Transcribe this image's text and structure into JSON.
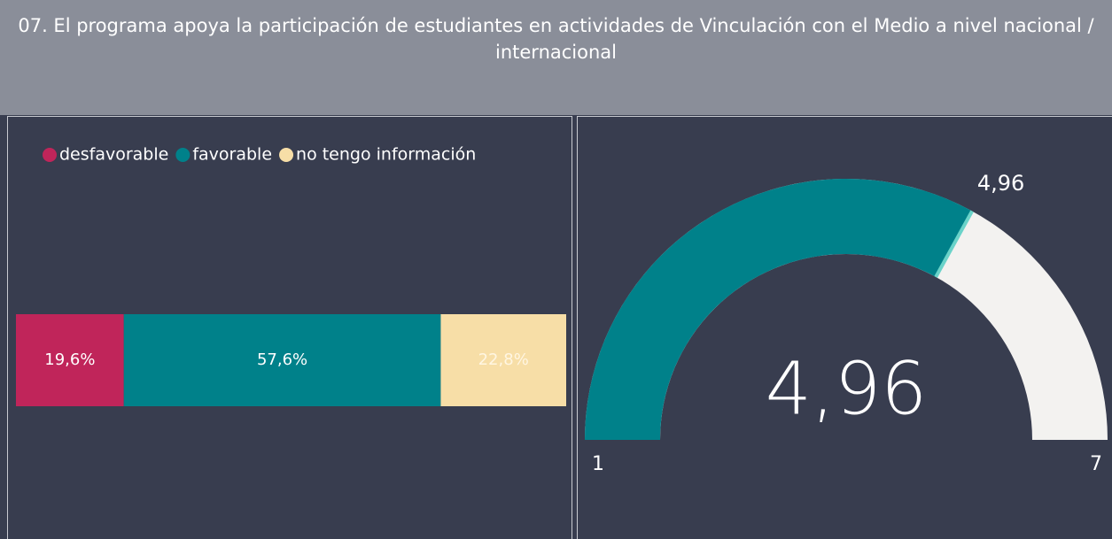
{
  "title": "07. El programa apoya la participación de estudiantes en actividades de Vinculación con el Medio a nivel nacional / internacional",
  "chart_data": [
    {
      "type": "stacked-bar",
      "categories": [
        null
      ],
      "series": [
        {
          "name": "desfavorable",
          "color": "#c0255a",
          "values": [
            19.6
          ],
          "value_labels": [
            "19,6%"
          ]
        },
        {
          "name": "favorable",
          "color": "#00818a",
          "values": [
            57.6
          ],
          "value_labels": [
            "57,6%"
          ]
        },
        {
          "name": "no tengo información",
          "color": "#f7dea7",
          "values": [
            22.8
          ],
          "value_labels": [
            "22,8%"
          ]
        }
      ],
      "xlim": [
        0,
        100
      ]
    },
    {
      "type": "gauge",
      "value": 4.96,
      "value_label": "4,96",
      "target": 4.96,
      "target_label": "4,96",
      "ylim": [
        1,
        7
      ],
      "yticks": [
        1,
        7
      ],
      "color": "#00818a",
      "track_color": "#f3f2f0",
      "target_color": "#6ad3c9"
    }
  ]
}
